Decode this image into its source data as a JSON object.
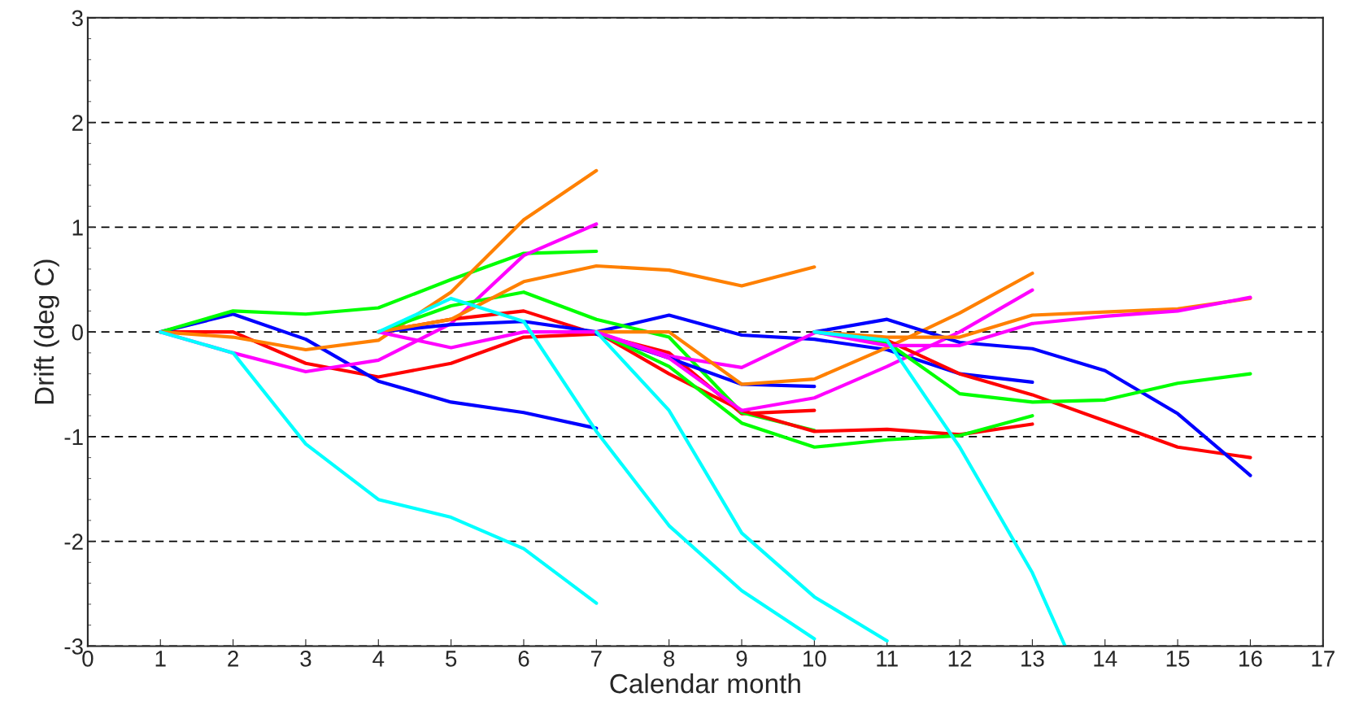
{
  "chart_data": {
    "type": "line",
    "xlabel": "Calendar month",
    "ylabel": "Drift (deg C)",
    "xlim": [
      0,
      17
    ],
    "ylim": [
      -3,
      3
    ],
    "xticks": [
      0,
      1,
      2,
      3,
      4,
      5,
      6,
      7,
      8,
      9,
      10,
      11,
      12,
      13,
      14,
      15,
      16,
      17
    ],
    "yticks": [
      -3,
      -2,
      -1,
      0,
      1,
      2,
      3
    ],
    "grid": "y",
    "line_style": "solid",
    "marker": "none",
    "series": [
      {
        "color": "#ff0000",
        "x": [
          1,
          2,
          3,
          4,
          5,
          6,
          7
        ],
        "values": [
          0,
          0,
          -0.3,
          -0.43,
          -0.3,
          -0.05,
          -0.02
        ]
      },
      {
        "color": "#0000ff",
        "x": [
          1,
          2,
          3,
          4,
          5,
          6,
          7
        ],
        "values": [
          0,
          0.17,
          -0.07,
          -0.47,
          -0.67,
          -0.77,
          -0.92
        ]
      },
      {
        "color": "#00ff00",
        "x": [
          1,
          2,
          3,
          4,
          5,
          6,
          7
        ],
        "values": [
          0,
          0.2,
          0.17,
          0.23,
          0.5,
          0.75,
          0.77
        ]
      },
      {
        "color": "#ff8000",
        "x": [
          1,
          2,
          3,
          4,
          5,
          6,
          7
        ],
        "values": [
          0,
          -0.05,
          -0.17,
          -0.08,
          0.38,
          1.07,
          1.54
        ]
      },
      {
        "color": "#ff00ff",
        "x": [
          1,
          2,
          3,
          4,
          5,
          6,
          7
        ],
        "values": [
          0,
          -0.2,
          -0.38,
          -0.27,
          0.08,
          0.73,
          1.03
        ]
      },
      {
        "color": "#00ffff",
        "x": [
          1,
          2,
          3,
          4,
          5,
          6,
          7
        ],
        "values": [
          0,
          -0.2,
          -1.07,
          -1.6,
          -1.77,
          -2.07,
          -2.59
        ]
      },
      {
        "color": "#ff0000",
        "x": [
          4,
          5,
          6,
          7,
          8,
          9,
          10
        ],
        "values": [
          0,
          0.12,
          0.2,
          -0.02,
          -0.2,
          -0.78,
          -0.75
        ]
      },
      {
        "color": "#0000ff",
        "x": [
          4,
          5,
          6,
          7,
          8,
          9,
          10,
          11,
          12,
          13
        ],
        "values": [
          0,
          0.07,
          0.1,
          0,
          0.16,
          -0.03,
          -0.07,
          -0.17,
          -0.4,
          -0.48
        ]
      },
      {
        "color": "#00ff00",
        "x": [
          4,
          5,
          6,
          7,
          8,
          9,
          10
        ],
        "values": [
          0,
          0.25,
          0.38,
          0.12,
          -0.05,
          -0.77,
          -0.94
        ]
      },
      {
        "color": "#ff8000",
        "x": [
          4,
          5,
          6,
          7,
          8,
          9,
          10
        ],
        "values": [
          0,
          0.12,
          0.48,
          0.63,
          0.59,
          0.44,
          0.62
        ]
      },
      {
        "color": "#ff00ff",
        "x": [
          4,
          5,
          6,
          7,
          8,
          9,
          10
        ],
        "values": [
          0,
          -0.15,
          0,
          0,
          -0.23,
          -0.34,
          -0.01
        ]
      },
      {
        "color": "#00ffff",
        "x": [
          4,
          5,
          6,
          7,
          8,
          9,
          10
        ],
        "values": [
          0,
          0.32,
          0.1,
          -0.95,
          -1.85,
          -2.47,
          -2.93
        ]
      },
      {
        "color": "#ff0000",
        "x": [
          7,
          8,
          9,
          10,
          11,
          12,
          13
        ],
        "values": [
          0,
          -0.4,
          -0.75,
          -0.95,
          -0.93,
          -0.98,
          -0.88
        ]
      },
      {
        "color": "#0000ff",
        "x": [
          7,
          8,
          9,
          10
        ],
        "values": [
          -0.02,
          -0.25,
          -0.5,
          -0.52
        ]
      },
      {
        "color": "#00ff00",
        "x": [
          7,
          8,
          9,
          10,
          11,
          12,
          13
        ],
        "values": [
          0,
          -0.33,
          -0.87,
          -1.1,
          -1.03,
          -0.99,
          -0.8
        ]
      },
      {
        "color": "#ff8000",
        "x": [
          7,
          8,
          9,
          10,
          11,
          12,
          13
        ],
        "values": [
          0,
          0,
          -0.5,
          -0.45,
          -0.15,
          0.18,
          0.56
        ]
      },
      {
        "color": "#ff00ff",
        "x": [
          7,
          8,
          9,
          10,
          11,
          12,
          13
        ],
        "values": [
          0,
          -0.25,
          -0.75,
          -0.63,
          -0.33,
          0,
          0.4
        ]
      },
      {
        "color": "#00ffff",
        "x": [
          7,
          8,
          9,
          10,
          11
        ],
        "values": [
          0,
          -0.75,
          -1.92,
          -2.53,
          -2.95
        ]
      },
      {
        "color": "#ff0000",
        "x": [
          10,
          11,
          12,
          13,
          14,
          15,
          16
        ],
        "values": [
          0,
          -0.08,
          -0.4,
          -0.6,
          -0.85,
          -1.1,
          -1.2
        ]
      },
      {
        "color": "#0000ff",
        "x": [
          10,
          11,
          12,
          13,
          14,
          15,
          16
        ],
        "values": [
          0,
          0.12,
          -0.1,
          -0.16,
          -0.37,
          -0.78,
          -1.37
        ]
      },
      {
        "color": "#00ff00",
        "x": [
          10,
          11,
          12,
          13,
          14,
          15,
          16
        ],
        "values": [
          0,
          -0.1,
          -0.59,
          -0.67,
          -0.65,
          -0.49,
          -0.4
        ]
      },
      {
        "color": "#ff8000",
        "x": [
          10,
          11,
          12,
          13,
          14,
          15,
          16
        ],
        "values": [
          0,
          -0.05,
          -0.05,
          0.16,
          0.19,
          0.22,
          0.32
        ]
      },
      {
        "color": "#ff00ff",
        "x": [
          10,
          11,
          12,
          13,
          14,
          15,
          16
        ],
        "values": [
          0,
          -0.13,
          -0.13,
          0.08,
          0.15,
          0.2,
          0.33
        ]
      },
      {
        "color": "#00ffff",
        "x": [
          10,
          11,
          12,
          13,
          13.45
        ],
        "values": [
          0,
          -0.08,
          -1.1,
          -2.3,
          -3
        ]
      }
    ]
  }
}
